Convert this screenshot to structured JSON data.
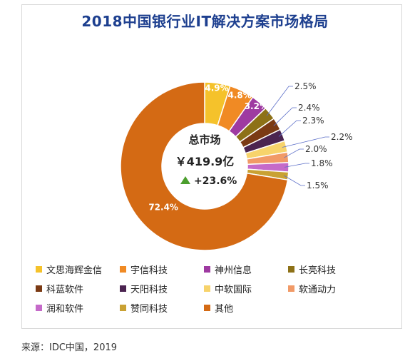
{
  "chart_data": {
    "type": "pie",
    "title": "2018中国银行业IT解决方案市场格局",
    "center": {
      "label": "总市场",
      "value": "￥419.9亿",
      "growth": "+23.6%"
    },
    "slices": [
      {
        "name": "文思海辉金信",
        "value": 4.9,
        "label": "4.9%",
        "color": "#f5c22b"
      },
      {
        "name": "宇信科技",
        "value": 4.8,
        "label": "4.8%",
        "color": "#f08a24"
      },
      {
        "name": "神州信息",
        "value": 3.2,
        "label": "3.2%",
        "color": "#9e3aa1"
      },
      {
        "name": "长亮科技",
        "value": 2.5,
        "label": "2.5%",
        "color": "#8d7117"
      },
      {
        "name": "科蓝软件",
        "value": 2.4,
        "label": "2.4%",
        "color": "#7b3a14"
      },
      {
        "name": "天阳科技",
        "value": 2.3,
        "label": "2.3%",
        "color": "#4b2450"
      },
      {
        "name": "中软国际",
        "value": 2.2,
        "label": "2.2%",
        "color": "#f7d36b"
      },
      {
        "name": "软通动力",
        "value": 2.0,
        "label": "2.0%",
        "color": "#f19a67"
      },
      {
        "name": "润和软件",
        "value": 1.8,
        "label": "1.8%",
        "color": "#c56ac9"
      },
      {
        "name": "赞同科技",
        "value": 1.5,
        "label": "1.5%",
        "color": "#c9a133"
      },
      {
        "name": "其他",
        "value": 72.4,
        "label": "72.4%",
        "color": "#d46a14"
      }
    ],
    "legend_position": "bottom"
  },
  "source": "来源：IDC中国，2019",
  "colors": {
    "growth_arrow": "#4b9e2d",
    "label_line": "#5b6ec8",
    "title": "#1d3f8f"
  }
}
